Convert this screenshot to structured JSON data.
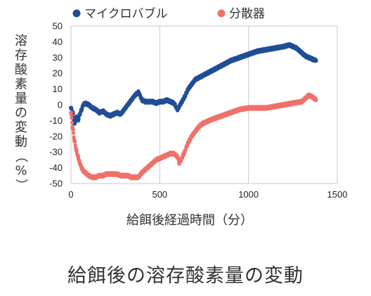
{
  "caption": "給餌後の溶存酸素量の変動",
  "chart_data": {
    "type": "scatter",
    "title": "",
    "xlabel": "給餌後経過時間（分）",
    "ylabel": "溶存酸素量の変動（%）",
    "xlim": [
      0,
      1500
    ],
    "ylim": [
      -50,
      50
    ],
    "xticks": [
      0,
      500,
      1000,
      1500
    ],
    "yticks": [
      -50,
      -40,
      -30,
      -20,
      -10,
      0,
      10,
      20,
      30,
      40,
      50
    ],
    "grid": "vertical",
    "legend_position": "top",
    "series": [
      {
        "name": "マイクロバブル",
        "color": "#1f4e96",
        "x": [
          0,
          10,
          20,
          30,
          40,
          50,
          60,
          70,
          80,
          100,
          120,
          140,
          160,
          180,
          200,
          220,
          240,
          260,
          280,
          300,
          320,
          340,
          360,
          380,
          400,
          420,
          440,
          460,
          480,
          500,
          520,
          540,
          560,
          580,
          600,
          620,
          640,
          660,
          680,
          700,
          750,
          800,
          850,
          900,
          950,
          1000,
          1050,
          1100,
          1150,
          1200,
          1230,
          1250,
          1270,
          1300,
          1320,
          1340,
          1360,
          1380
        ],
        "y": [
          -2,
          -5,
          -12,
          -8,
          -10,
          -6,
          -3,
          0,
          1,
          0,
          -2,
          -3,
          -5,
          -4,
          -6,
          -7,
          -6,
          -5,
          -6,
          -3,
          0,
          3,
          6,
          8,
          3,
          2,
          2,
          2,
          1,
          2,
          2,
          3,
          2,
          1,
          -3,
          1,
          5,
          10,
          13,
          16,
          19,
          22,
          25,
          28,
          30,
          32,
          34,
          35,
          36,
          37,
          38,
          37,
          36,
          33,
          31,
          30,
          29,
          28
        ]
      },
      {
        "name": "分散器",
        "color": "#f0706a",
        "x": [
          0,
          10,
          20,
          30,
          40,
          50,
          60,
          70,
          80,
          90,
          100,
          120,
          140,
          160,
          180,
          200,
          220,
          240,
          260,
          280,
          300,
          320,
          340,
          360,
          380,
          400,
          420,
          440,
          460,
          480,
          500,
          520,
          540,
          560,
          580,
          600,
          610,
          620,
          640,
          660,
          680,
          700,
          720,
          740,
          760,
          780,
          800,
          850,
          900,
          950,
          1000,
          1050,
          1100,
          1150,
          1200,
          1250,
          1300,
          1320,
          1340,
          1360,
          1380
        ],
        "y": [
          -5,
          -15,
          -23,
          -29,
          -33,
          -37,
          -40,
          -42,
          -43,
          -44,
          -45,
          -46,
          -46,
          -45,
          -45,
          -44,
          -44,
          -44,
          -44,
          -45,
          -45,
          -45,
          -46,
          -46,
          -46,
          -43,
          -41,
          -39,
          -37,
          -35,
          -34,
          -33,
          -32,
          -31,
          -31,
          -33,
          -37,
          -35,
          -30,
          -24,
          -20,
          -17,
          -14,
          -12,
          -11,
          -10,
          -9,
          -7,
          -5,
          -3,
          -2,
          -2,
          -2,
          -1,
          0,
          1,
          2,
          4,
          6,
          5,
          3
        ]
      }
    ]
  }
}
